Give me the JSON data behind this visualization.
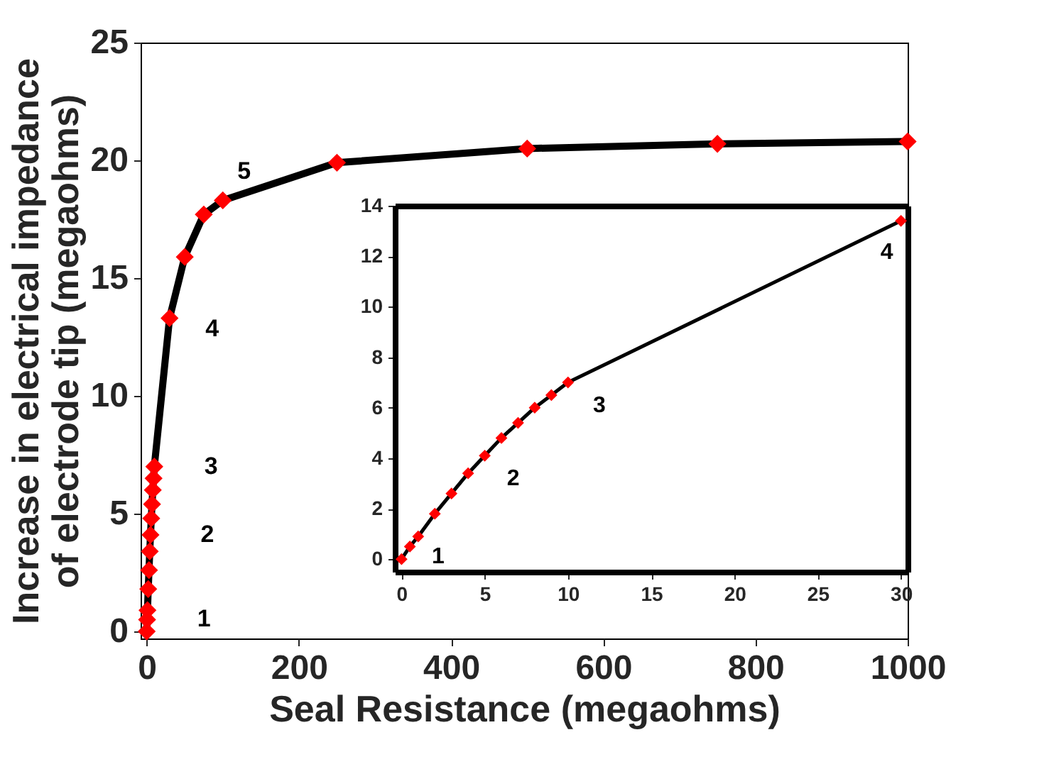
{
  "chart_data": [
    {
      "type": "line",
      "xlabel": "Seal Resistance (megaohms)",
      "ylabel": "Increase in electrical impedance of electrode tip (megaohms)",
      "x": [
        0,
        0.5,
        1,
        2,
        3,
        4,
        5,
        6,
        7,
        8,
        9,
        10,
        30,
        50,
        75,
        100,
        250,
        500,
        750,
        1000
      ],
      "series": [
        {
          "color": "#000000",
          "colors": [
            "#ff0000",
            "#ff0000",
            "#ff0000",
            "#ff0000",
            "#ff0000",
            "#ff0000",
            "#ff0000",
            "#ff0000",
            "#ff0000",
            "#ff0000",
            "#ff0000",
            "#ff0000",
            "#ff0000",
            "#ff0000",
            "#ff0000",
            "#ff0000",
            "#ff0000",
            "#ff0000",
            "#ff0000",
            "#ff0000"
          ],
          "values": [
            0,
            0.5,
            0.9,
            1.8,
            2.6,
            3.4,
            4.1,
            4.8,
            5.4,
            6,
            6.5,
            7,
            13.3,
            15.9,
            17.7,
            18.3,
            19.9,
            20.5,
            20.7,
            20.8
          ]
        }
      ],
      "xlim": [
        -8,
        1000
      ],
      "ylim": [
        -0.3,
        25
      ],
      "xticks": [
        0,
        200,
        400,
        600,
        800,
        1000
      ],
      "yticks": [
        0,
        5,
        10,
        15,
        20,
        25
      ],
      "marker": "diamond",
      "grid": false,
      "annotations": [
        {
          "text": "1",
          "x": 0.5,
          "y": 0.5
        },
        {
          "text": "2",
          "x": 5,
          "y": 4.1
        },
        {
          "text": "3",
          "x": 10,
          "y": 7
        },
        {
          "text": "4",
          "x": 30,
          "y": 13.3
        },
        {
          "text": "5",
          "x": 100,
          "y": 18.3
        }
      ]
    },
    {
      "type": "line",
      "x": [
        0,
        0.5,
        1,
        2,
        3,
        4,
        5,
        6,
        7,
        8,
        9,
        10,
        30
      ],
      "series": [
        {
          "color": "#000000",
          "colors": [
            "#ff0000",
            "#ff0000",
            "#ff0000",
            "#ff0000",
            "#ff0000",
            "#ff0000",
            "#ff0000",
            "#ff0000",
            "#ff0000",
            "#ff0000",
            "#ff0000",
            "#ff0000",
            "#ff0000"
          ],
          "values": [
            0,
            0.5,
            0.9,
            1.8,
            2.6,
            3.4,
            4.1,
            4.8,
            5.4,
            6,
            6.5,
            7,
            13.4
          ]
        }
      ],
      "xlim": [
        -0.4,
        30.4
      ],
      "ylim": [
        -0.5,
        14
      ],
      "xticks": [
        0,
        5,
        10,
        15,
        20,
        25,
        30
      ],
      "yticks": [
        0,
        2,
        4,
        6,
        8,
        10,
        12,
        14
      ],
      "marker": "diamond",
      "grid": false,
      "annotations": [
        {
          "text": "1",
          "x": 1,
          "y": 0.9
        },
        {
          "text": "2",
          "x": 5,
          "y": 4.1
        },
        {
          "text": "3",
          "x": 10,
          "y": 7
        },
        {
          "text": "4",
          "x": 30,
          "y": 13.4
        }
      ]
    }
  ]
}
